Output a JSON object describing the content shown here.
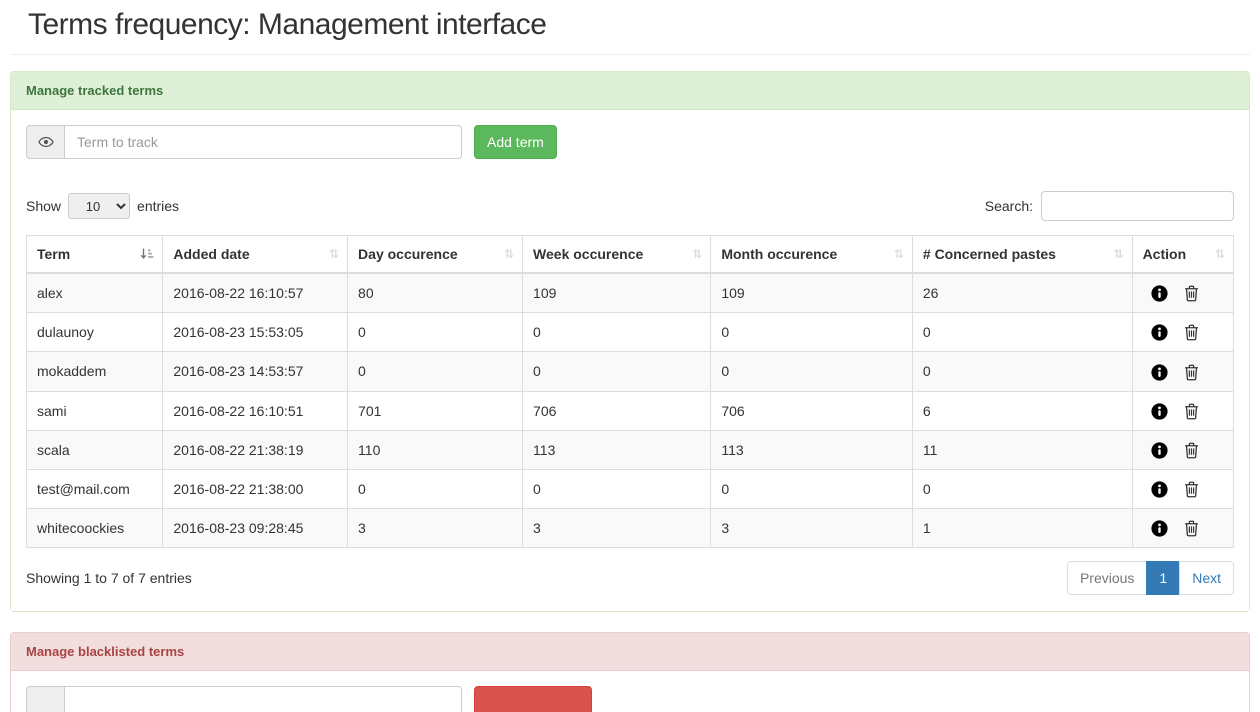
{
  "page": {
    "title": "Terms frequency: Management interface"
  },
  "tracked_panel": {
    "title": "Manage tracked terms",
    "term_input_placeholder": "Term to track",
    "add_button_label": "Add term",
    "show_label": "Show",
    "entries_label": "entries",
    "page_length_value": "10",
    "search_label": "Search:",
    "columns": [
      {
        "label": "Term",
        "sort": "asc"
      },
      {
        "label": "Added date",
        "sort": "none"
      },
      {
        "label": "Day occurence",
        "sort": "none"
      },
      {
        "label": "Week occurence",
        "sort": "none"
      },
      {
        "label": "Month occurence",
        "sort": "none"
      },
      {
        "label": "# Concerned pastes",
        "sort": "none"
      },
      {
        "label": "Action",
        "sort": "none"
      }
    ],
    "rows": [
      {
        "term": "alex",
        "added_date": "2016-08-22 16:10:57",
        "day": "80",
        "week": "109",
        "month": "109",
        "pastes": "26"
      },
      {
        "term": "dulaunoy",
        "added_date": "2016-08-23 15:53:05",
        "day": "0",
        "week": "0",
        "month": "0",
        "pastes": "0"
      },
      {
        "term": "mokaddem",
        "added_date": "2016-08-23 14:53:57",
        "day": "0",
        "week": "0",
        "month": "0",
        "pastes": "0"
      },
      {
        "term": "sami",
        "added_date": "2016-08-22 16:10:51",
        "day": "701",
        "week": "706",
        "month": "706",
        "pastes": "6"
      },
      {
        "term": "scala",
        "added_date": "2016-08-22 21:38:19",
        "day": "110",
        "week": "113",
        "month": "113",
        "pastes": "11"
      },
      {
        "term": "test@mail.com",
        "added_date": "2016-08-22 21:38:00",
        "day": "0",
        "week": "0",
        "month": "0",
        "pastes": "0"
      },
      {
        "term": "whitecoockies",
        "added_date": "2016-08-23 09:28:45",
        "day": "3",
        "week": "3",
        "month": "3",
        "pastes": "1"
      }
    ],
    "info_text": "Showing 1 to 7 of 7 entries",
    "pagination": {
      "previous_label": "Previous",
      "current_page": "1",
      "next_label": "Next"
    }
  },
  "blacklist_panel": {
    "title": "Manage blacklisted terms"
  },
  "colors": {
    "success_header_bg": "#dff0d8",
    "success_text": "#3c763d",
    "success_border": "#d6e9c6",
    "danger_header_bg": "#f2dede",
    "danger_text": "#a94442",
    "danger_border": "#ebccd1",
    "btn_success": "#5cb85c",
    "btn_danger": "#d9534f",
    "pagination_active": "#337ab7",
    "table_border": "#dddddd",
    "stripe_row": "#f9f9f9"
  }
}
